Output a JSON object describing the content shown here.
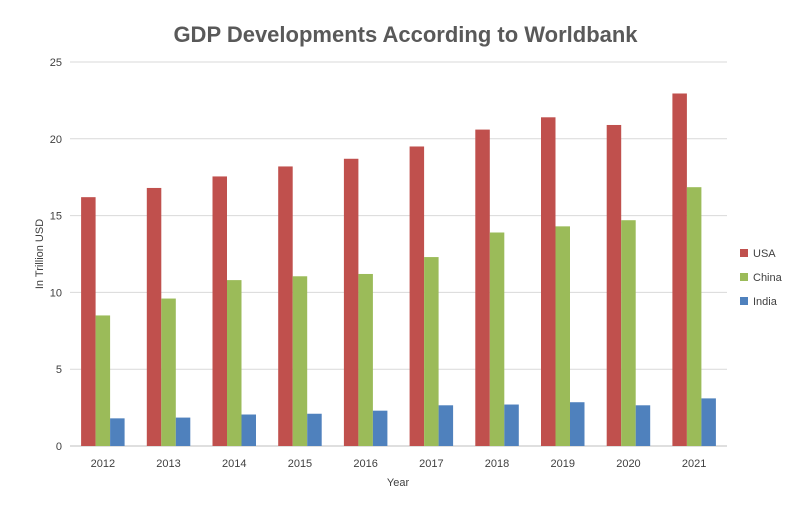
{
  "chart_data": {
    "type": "bar",
    "title": "GDP Developments According to Worldbank",
    "xlabel": "Year",
    "ylabel": "In Trillion USD",
    "ylim": [
      0,
      25
    ],
    "yticks": [
      "0",
      "5",
      "10",
      "15",
      "20",
      "25"
    ],
    "grid": true,
    "legend_position": "right",
    "categories": [
      "2012",
      "2013",
      "2014",
      "2015",
      "2016",
      "2017",
      "2018",
      "2019",
      "2020",
      "2021"
    ],
    "series": [
      {
        "name": "USA",
        "color": "#C0504D",
        "values": [
          16.2,
          16.8,
          17.55,
          18.2,
          18.7,
          19.5,
          20.6,
          21.4,
          20.9,
          22.95
        ]
      },
      {
        "name": "China",
        "color": "#9BBB59",
        "values": [
          8.5,
          9.6,
          10.8,
          11.05,
          11.2,
          12.3,
          13.9,
          14.3,
          14.7,
          16.85
        ]
      },
      {
        "name": "India",
        "color": "#4F81BD",
        "values": [
          1.8,
          1.85,
          2.05,
          2.1,
          2.3,
          2.65,
          2.7,
          2.85,
          2.65,
          3.1
        ]
      }
    ]
  }
}
